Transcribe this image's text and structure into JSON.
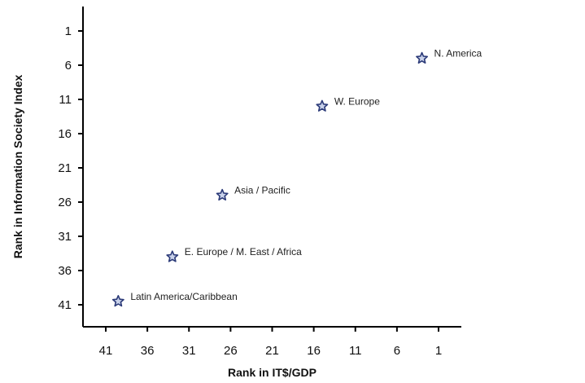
{
  "chart_data": {
    "type": "scatter",
    "title": "",
    "xlabel": "Rank in IT$/GDP",
    "ylabel": "Rank in Information Society Index",
    "x_ticks": [
      41,
      36,
      31,
      26,
      21,
      16,
      11,
      6,
      1
    ],
    "y_ticks": [
      1,
      6,
      11,
      16,
      21,
      26,
      31,
      36,
      41
    ],
    "xlim": [
      44,
      -2
    ],
    "ylim": [
      -2,
      44
    ],
    "x_reversed": true,
    "y_reversed": true,
    "grid": false,
    "marker": "star",
    "marker_color": "#2b3a78",
    "points": [
      {
        "label": "N. America",
        "x": 3,
        "y": 5
      },
      {
        "label": "W. Europe",
        "x": 15,
        "y": 12
      },
      {
        "label": "Asia / Pacific",
        "x": 27,
        "y": 25
      },
      {
        "label": "E. Europe / M. East / Africa",
        "x": 33,
        "y": 34
      },
      {
        "label": "Latin America/Caribbean",
        "x": 39.5,
        "y": 40.5
      }
    ]
  }
}
